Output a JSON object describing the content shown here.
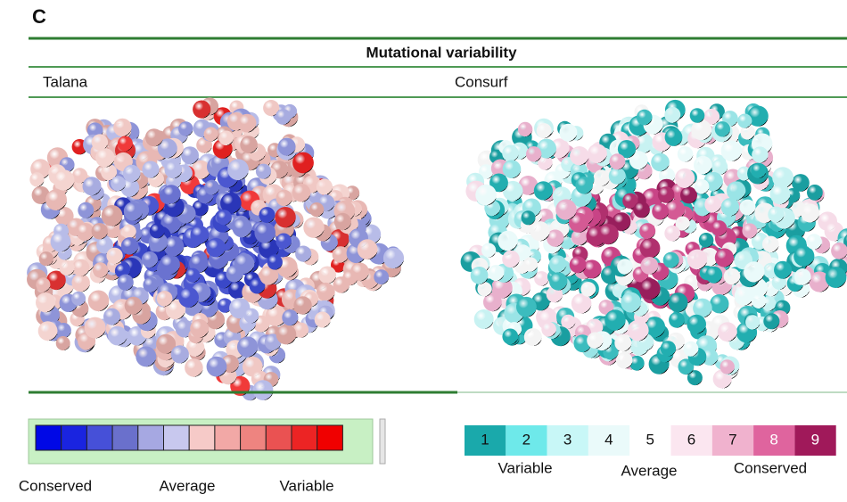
{
  "panel_label": "C",
  "header": {
    "title": "Mutational variability",
    "columns": [
      "Talana",
      "Consurf"
    ]
  },
  "talana_legend": {
    "labels": [
      "Conserved",
      "Average",
      "Variable"
    ]
  },
  "consurf_legend": {
    "grades": [
      1,
      2,
      3,
      4,
      5,
      6,
      7,
      8,
      9
    ],
    "labels": [
      "Variable",
      "Average",
      "Conserved"
    ]
  }
}
